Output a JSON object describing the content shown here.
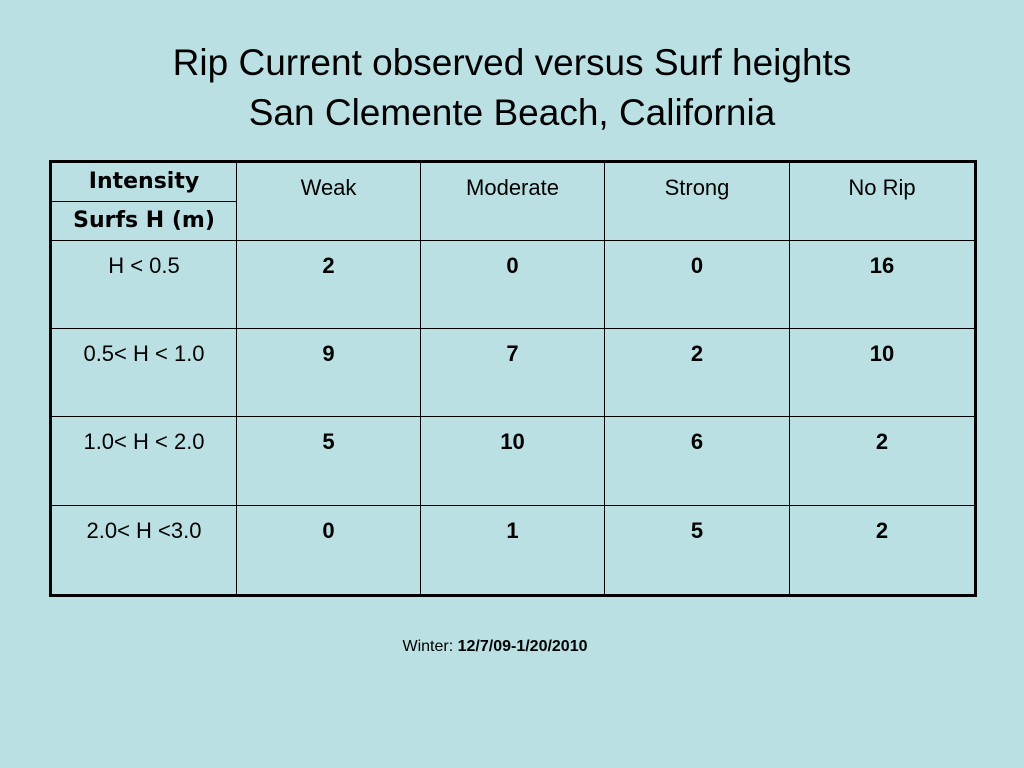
{
  "title": {
    "line1": "Rip Current observed versus Surf heights",
    "line2": "San Clemente Beach, California"
  },
  "table": {
    "corner_top": "Intensity",
    "corner_bottom": "Surfs H (m)",
    "columns": [
      "Weak",
      "Moderate",
      "Strong",
      "No Rip"
    ],
    "rows": [
      {
        "label": "H < 0.5",
        "values": [
          "2",
          "0",
          "0",
          "16"
        ]
      },
      {
        "label": "0.5< H < 1.0",
        "values": [
          "9",
          "7",
          "2",
          "10"
        ]
      },
      {
        "label": "1.0< H < 2.0",
        "values": [
          "5",
          "10",
          "6",
          "2"
        ]
      },
      {
        "label": "2.0< H <3.0",
        "values": [
          "0",
          "1",
          "5",
          "2"
        ]
      }
    ]
  },
  "footer": {
    "prefix": "Winter: ",
    "dates": "12/7/09-1/20/2010"
  }
}
